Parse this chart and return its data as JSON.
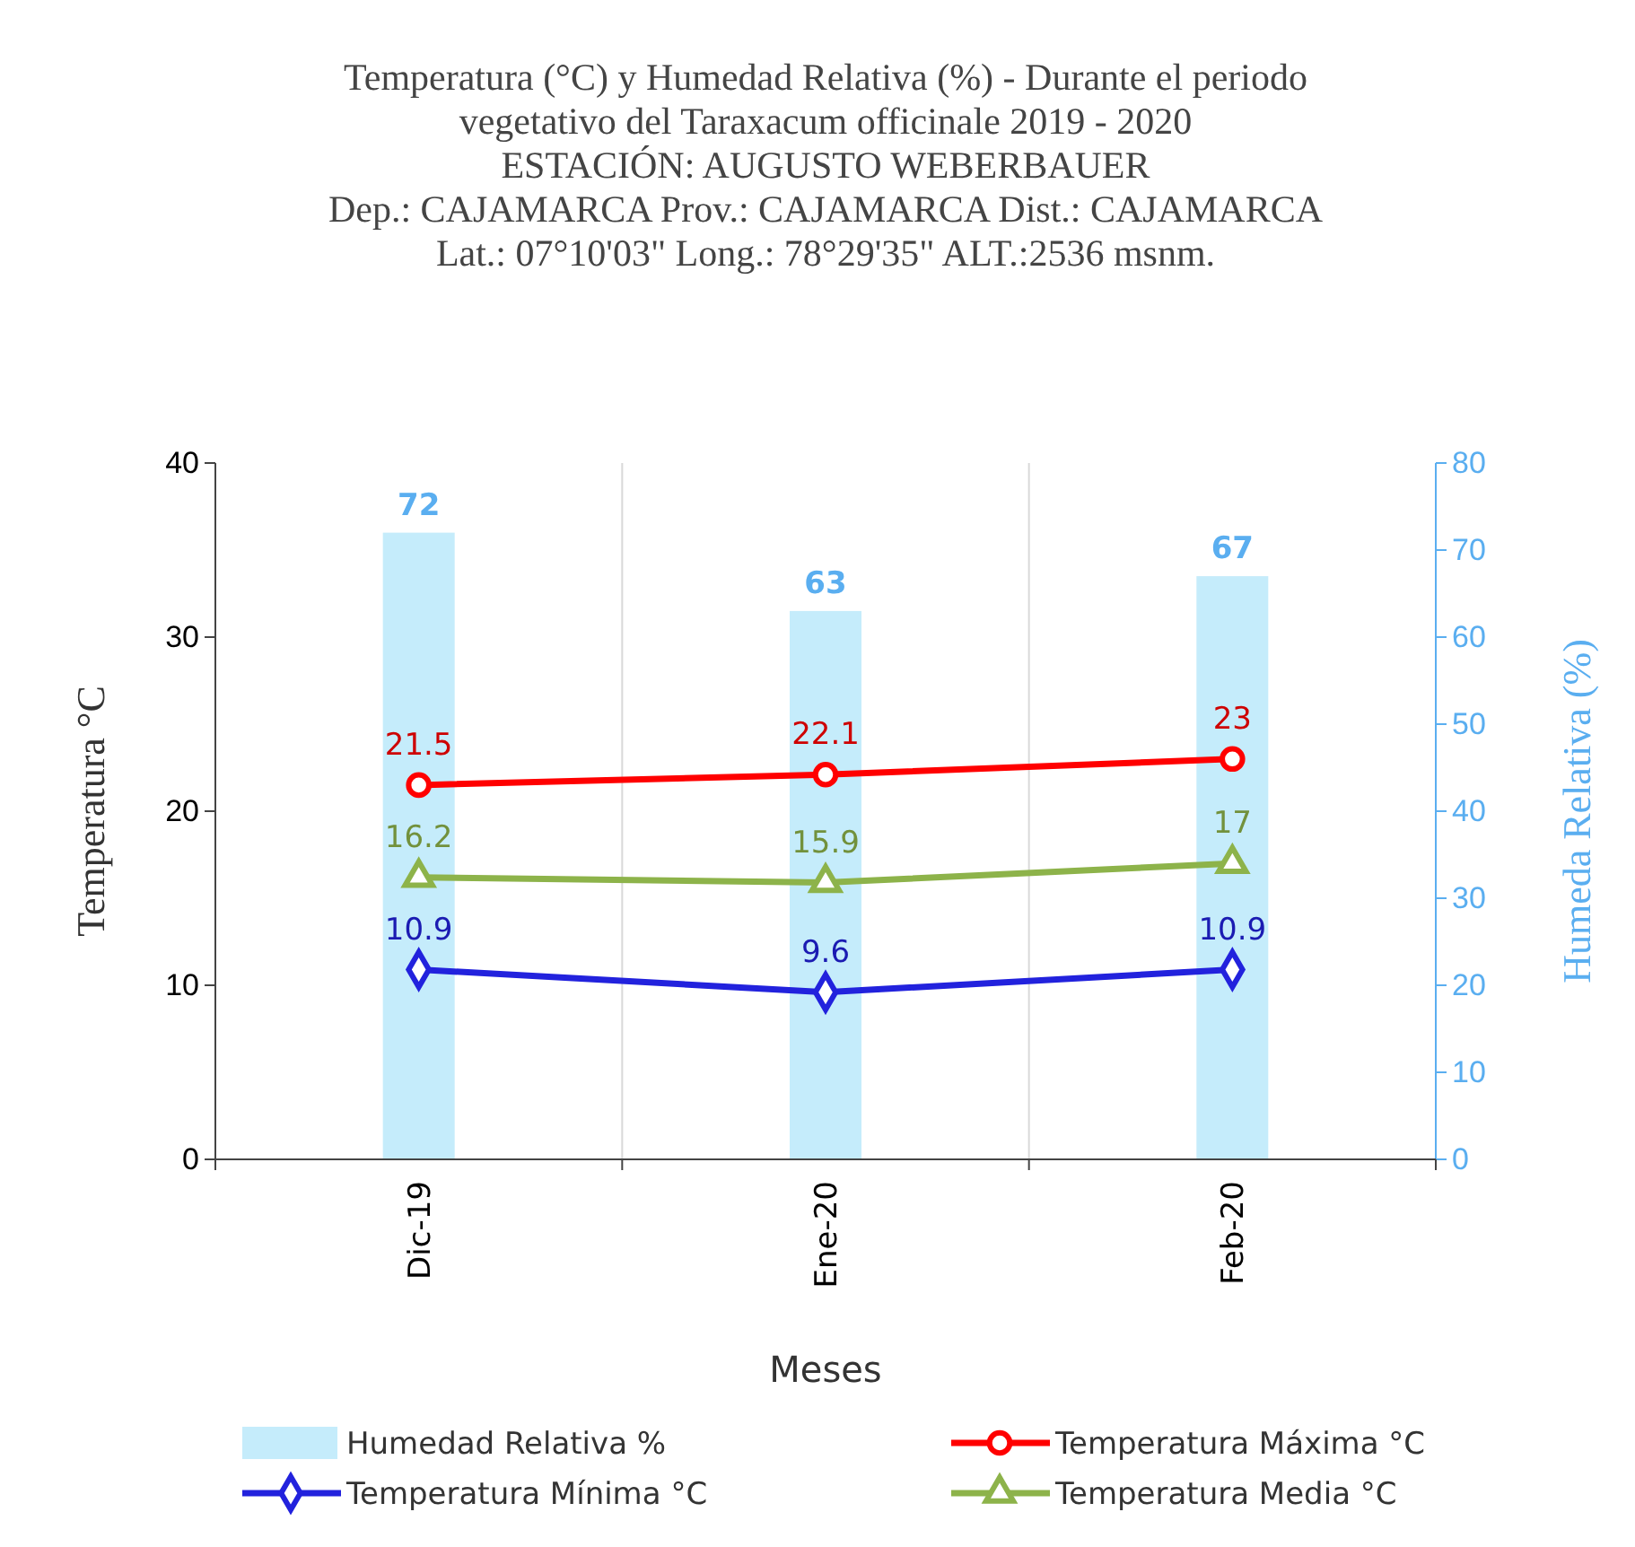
{
  "chart_data": {
    "type": "line",
    "title": "Temperatura  (°C)  y Humedad Relativa  (%) - Durante el periodo\nvegetativo del Taraxacum officinale 2019 - 2020\nESTACIÓN: AUGUSTO WEBERBAUER\nDep.: CAJAMARCA Prov.: CAJAMARCA Dist.: CAJAMARCA\nLat.: 07°10'03\"  Long.: 78°29'35\" ALT.:2536 msnm.",
    "categories": [
      "Dic-19",
      "Ene-20",
      "Feb-20"
    ],
    "xlabel": "Meses",
    "ylabel": "Temperatura  °C",
    "y2label": "Humeda Relativa (%)",
    "ylim": [
      0,
      40
    ],
    "yticks": [
      0,
      10,
      20,
      30,
      40
    ],
    "y2lim": [
      0,
      80
    ],
    "y2ticks": [
      0,
      10,
      20,
      30,
      40,
      50,
      60,
      70,
      80
    ],
    "grid": "x",
    "legend": "bottom",
    "data_labels": true,
    "series": [
      {
        "name": "Humedad Relativa %",
        "type": "bar",
        "axis": "y2",
        "color": "#c5ecfb",
        "values": [
          72,
          63,
          67
        ]
      },
      {
        "name": "Temperatura Máxima °C",
        "marker": "circle",
        "color": "#ff0000",
        "values": [
          21.5,
          22.1,
          23
        ]
      },
      {
        "name": "Temperatura Mínima °C",
        "marker": "diamond",
        "color": "#2222dd",
        "values": [
          10.9,
          9.6,
          10.9
        ]
      },
      {
        "name": "Temperatura Media °C",
        "marker": "triangle",
        "color": "#8db34a",
        "values": [
          16.2,
          15.9,
          17
        ]
      }
    ]
  }
}
